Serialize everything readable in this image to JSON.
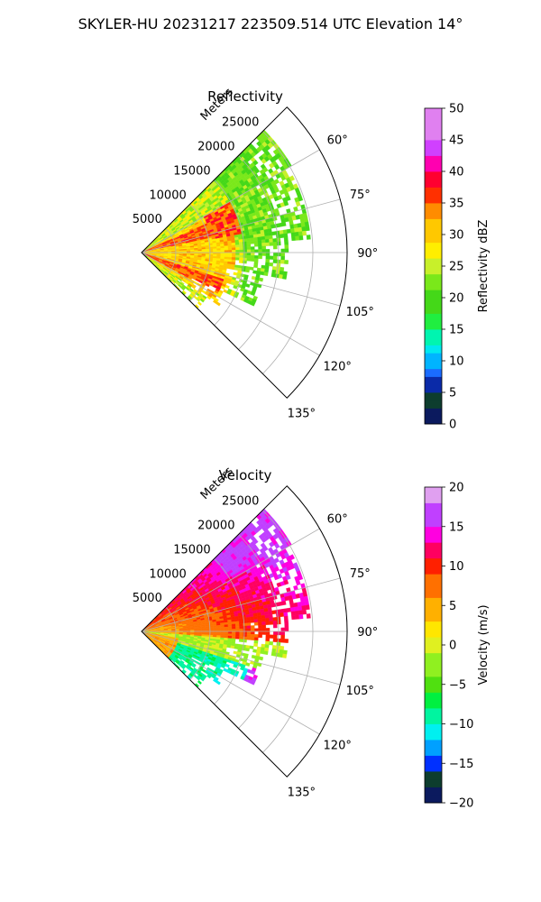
{
  "figure": {
    "suptitle": "SKYLER-HU  20231217  223509.514 UTC Elevation 14°"
  },
  "chart_data": [
    {
      "type": "heatmap",
      "title": "Reflectivity",
      "projection": "polar-sector",
      "radial_label": "Meters",
      "radial_ticks": [
        5000,
        10000,
        15000,
        20000,
        25000
      ],
      "radial_tick_labels": [
        "5000",
        "10000",
        "15000",
        "20000",
        "25000"
      ],
      "rmax": 30000,
      "theta_range_deg": [
        45,
        135
      ],
      "theta_ticks_deg": [
        60,
        75,
        90,
        105,
        120,
        135
      ],
      "theta_tick_labels": [
        "60°",
        "75°",
        "90°",
        "105°",
        "120°",
        "135°"
      ],
      "grid": true,
      "colorbar": {
        "label": "Reflectivity dBZ",
        "range": [
          0,
          50
        ],
        "ticks": [
          0,
          5,
          10,
          15,
          20,
          25,
          30,
          35,
          40,
          45,
          50
        ],
        "tick_labels": [
          "0",
          "5",
          "10",
          "15",
          "20",
          "25",
          "30",
          "35",
          "40",
          "45",
          "50"
        ]
      }
    },
    {
      "type": "heatmap",
      "title": "Velocity",
      "projection": "polar-sector",
      "radial_label": "Meters",
      "radial_ticks": [
        5000,
        10000,
        15000,
        20000,
        25000
      ],
      "radial_tick_labels": [
        "5000",
        "10000",
        "15000",
        "20000",
        "25000"
      ],
      "rmax": 30000,
      "theta_range_deg": [
        45,
        135
      ],
      "theta_ticks_deg": [
        60,
        75,
        90,
        105,
        120,
        135
      ],
      "theta_tick_labels": [
        "60°",
        "75°",
        "90°",
        "105°",
        "120°",
        "135°"
      ],
      "grid": true,
      "colorbar": {
        "label": "Velocity (m/s)",
        "range": [
          -20,
          20
        ],
        "ticks": [
          -20,
          -15,
          -10,
          -5,
          0,
          5,
          10,
          15,
          20
        ],
        "tick_labels": [
          "−20",
          "−15",
          "−10",
          "−5",
          "0",
          "5",
          "10",
          "15",
          "20"
        ]
      }
    }
  ]
}
